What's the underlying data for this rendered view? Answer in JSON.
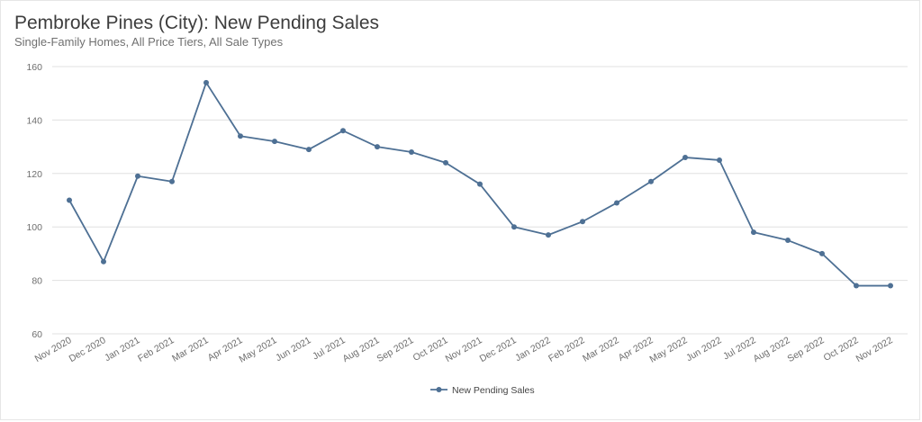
{
  "header": {
    "title": "Pembroke Pines (City): New Pending Sales",
    "subtitle": "Single-Family Homes, All Price Tiers, All Sale Types"
  },
  "chart_data": {
    "type": "line",
    "title": "Pembroke Pines (City): New Pending Sales",
    "subtitle": "Single-Family Homes, All Price Tiers, All Sale Types",
    "xlabel": "",
    "ylabel": "",
    "ylim": [
      60,
      160
    ],
    "yticks": [
      60,
      80,
      100,
      120,
      140,
      160
    ],
    "grid": true,
    "legend_position": "bottom-center",
    "categories": [
      "Nov 2020",
      "Dec 2020",
      "Jan 2021",
      "Feb 2021",
      "Mar 2021",
      "Apr 2021",
      "May 2021",
      "Jun 2021",
      "Jul 2021",
      "Aug 2021",
      "Sep 2021",
      "Oct 2021",
      "Nov 2021",
      "Dec 2021",
      "Jan 2022",
      "Feb 2022",
      "Mar 2022",
      "Apr 2022",
      "May 2022",
      "Jun 2022",
      "Jul 2022",
      "Aug 2022",
      "Sep 2022",
      "Oct 2022",
      "Nov 2022"
    ],
    "series": [
      {
        "name": "New Pending Sales",
        "color": "#4e7094",
        "values": [
          110,
          87,
          119,
          117,
          154,
          134,
          132,
          129,
          136,
          130,
          128,
          124,
          116,
          100,
          97,
          102,
          109,
          117,
          126,
          125,
          98,
          95,
          90,
          78,
          78
        ]
      }
    ]
  }
}
